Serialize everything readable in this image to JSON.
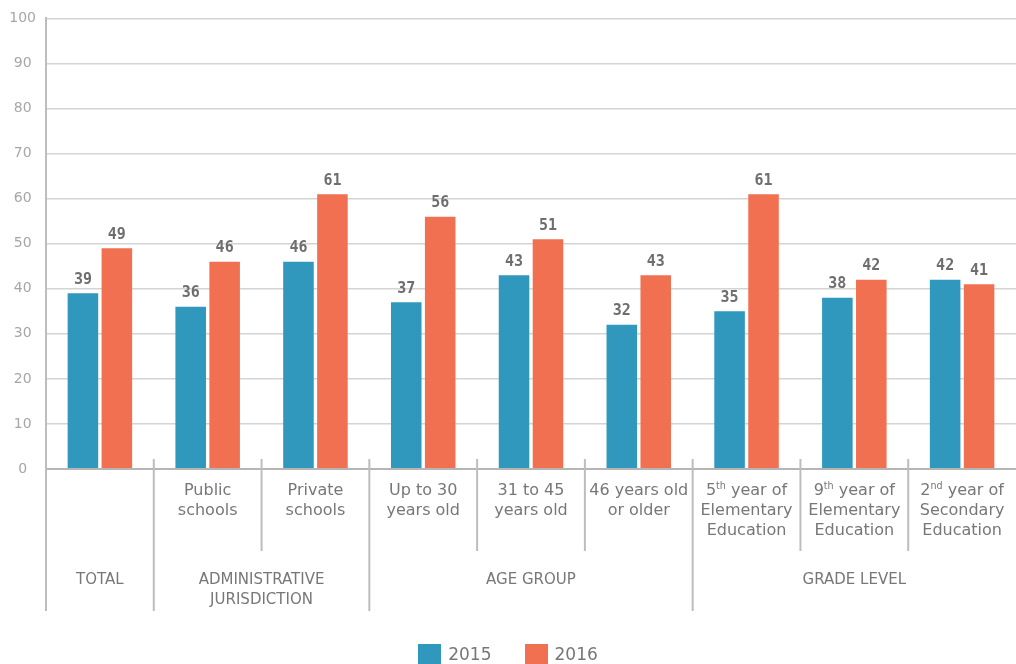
{
  "chart_data": {
    "type": "bar",
    "categories": [
      null,
      "Public schools",
      "Private schools",
      "Up to 30 years old",
      "31 to 45 years old",
      "46 years old or older",
      "5$^{th}$ year of Elementary Education",
      "9$^{th}$ year of Elementary Education",
      "2$^{nd}$ year of Secondary Education"
    ],
    "series": [
      {
        "name": "2015",
        "color": "#2f98bc",
        "values": [
          39,
          36,
          46,
          37,
          43,
          32,
          35,
          38,
          42
        ]
      },
      {
        "name": "2016",
        "color": "#f07051",
        "values": [
          49,
          46,
          61,
          56,
          51,
          43,
          61,
          42,
          41
        ]
      }
    ],
    "ylim": [
      0,
      100
    ],
    "yticks": [
      0,
      10,
      20,
      30,
      40,
      50,
      60,
      70,
      80,
      90,
      100
    ],
    "grid": "y",
    "legend": "bottom",
    "data_labels": true,
    "annotations": [
      "TOTAL",
      "ADMINISTRATIVE JURISDICTION",
      "AGE GROUP",
      "GRADE LEVEL"
    ]
  }
}
